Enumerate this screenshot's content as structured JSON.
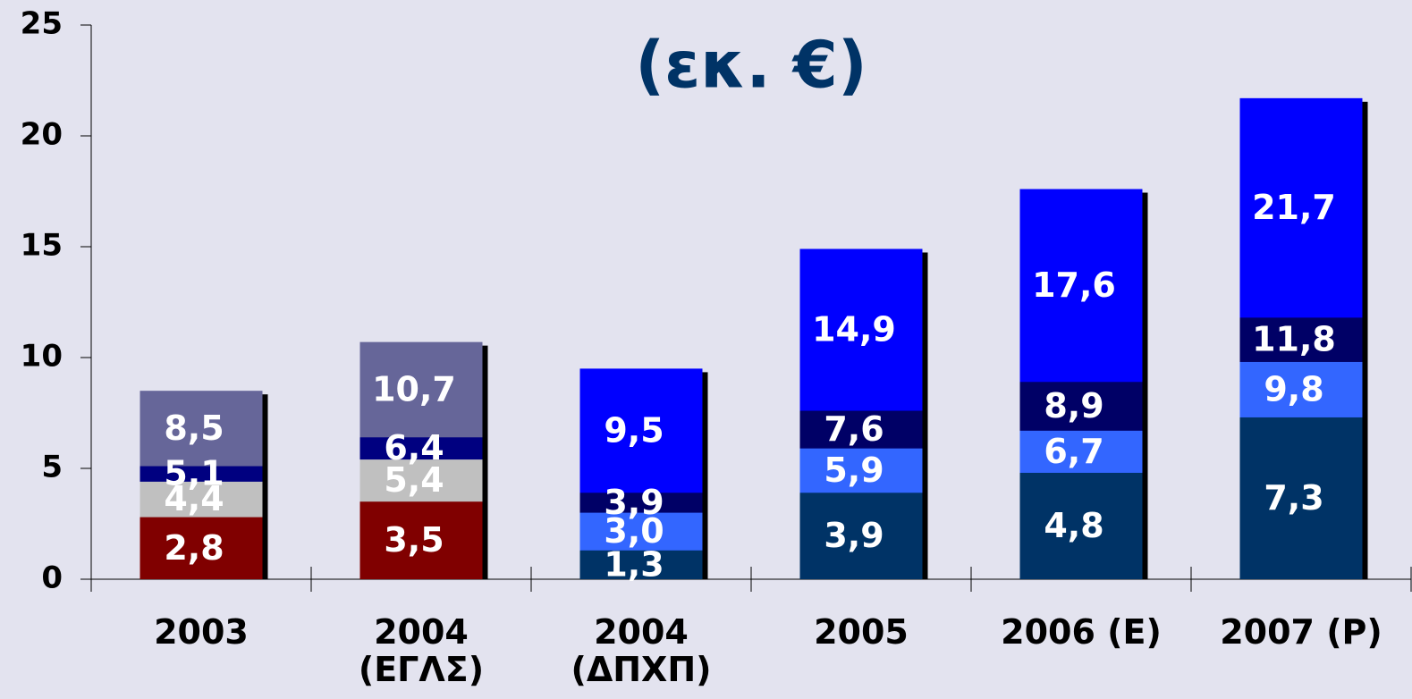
{
  "chart_data": {
    "type": "bar",
    "title": "(εκ. €)",
    "categories": [
      "2003",
      "2004\n(ΕΓΛΣ)",
      "2004\n(ΔΠΧΠ)",
      "2005",
      "2006 (Ε)",
      "2007 (Ρ)"
    ],
    "series": [
      {
        "color": "#666699",
        "values": [
          8.5,
          10.7,
          null,
          null,
          null,
          null
        ],
        "value_labels": [
          "8,5",
          "10,7",
          null,
          null,
          null,
          null
        ]
      },
      {
        "color": "#000080",
        "values": [
          5.1,
          6.4,
          null,
          null,
          null,
          null
        ],
        "value_labels": [
          "5,1",
          "6,4",
          null,
          null,
          null,
          null
        ]
      },
      {
        "color": "#c0c0c0",
        "values": [
          4.4,
          5.4,
          null,
          null,
          null,
          null
        ],
        "value_labels": [
          "4,4",
          "5,4",
          null,
          null,
          null,
          null
        ]
      },
      {
        "color": "#800000",
        "values": [
          2.8,
          3.5,
          null,
          null,
          null,
          null
        ],
        "value_labels": [
          "2,8",
          "3,5",
          null,
          null,
          null,
          null
        ]
      },
      {
        "color": "#0000ff",
        "values": [
          null,
          null,
          9.5,
          14.9,
          17.6,
          21.7
        ],
        "value_labels": [
          null,
          null,
          "9,5",
          "14,9",
          "17,6",
          "21,7"
        ]
      },
      {
        "color": "#000066",
        "values": [
          null,
          null,
          3.9,
          7.6,
          8.9,
          11.8
        ],
        "value_labels": [
          null,
          null,
          "3,9",
          "7,6",
          "8,9",
          "11,8"
        ]
      },
      {
        "color": "#3366ff",
        "values": [
          null,
          null,
          3.0,
          5.9,
          6.7,
          9.8
        ],
        "value_labels": [
          null,
          null,
          "3,0",
          "5,9",
          "6,7",
          "9,8"
        ]
      },
      {
        "color": "#003366",
        "values": [
          null,
          null,
          1.3,
          3.9,
          4.8,
          7.3
        ],
        "value_labels": [
          null,
          null,
          "1,3",
          "3,9",
          "4,8",
          "7,3"
        ]
      }
    ],
    "ylim": [
      0,
      25
    ],
    "yticks": [
      0,
      5,
      10,
      15,
      20,
      25
    ]
  }
}
